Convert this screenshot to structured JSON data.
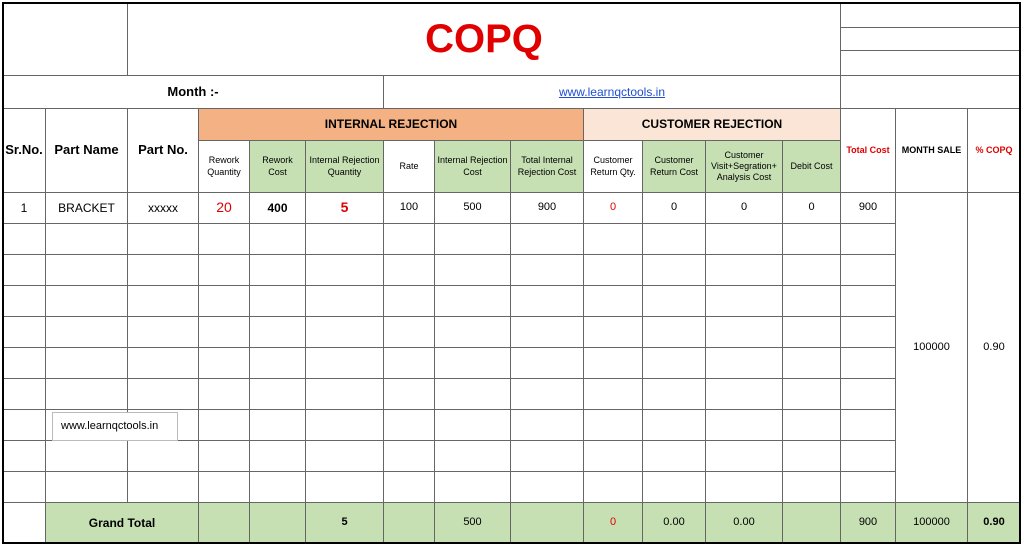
{
  "title": "COPQ",
  "month_label": "Month :-",
  "link": "www.learnqctools.in",
  "group_headers": {
    "internal": "INTERNAL REJECTION",
    "customer": "CUSTOMER REJECTION"
  },
  "columns": [
    "Sr.No.",
    "Part Name",
    "Part No.",
    "Rework Quantity",
    "Rework Cost",
    "Internal Rejection Quantity",
    "Rate",
    "Internal Rejection Cost",
    "Total Internal Rejection Cost",
    "Customer Return Qty.",
    "Customer Return Cost",
    "Customer Visit+Segration+ Analysis Cost",
    "Debit Cost",
    "Total Cost",
    "MONTH SALE",
    "% COPQ"
  ],
  "rows": [
    [
      "1",
      "BRACKET",
      "xxxxx",
      "20",
      "400",
      "5",
      "100",
      "500",
      "900",
      "0",
      "0",
      "0",
      "0",
      "900"
    ]
  ],
  "month_sale": "100000",
  "copq": "0.90",
  "grand_total": {
    "label": "Grand Total",
    "rejection_quantity": "5",
    "rejection_cost": "500",
    "customer_return_qty": "0",
    "customer_return_cost": "0.00",
    "visit_cost": "0.00",
    "total_cost": "900",
    "month_sale": "100000",
    "copq": "0.90"
  },
  "watermark": "www.learnqctools.in"
}
